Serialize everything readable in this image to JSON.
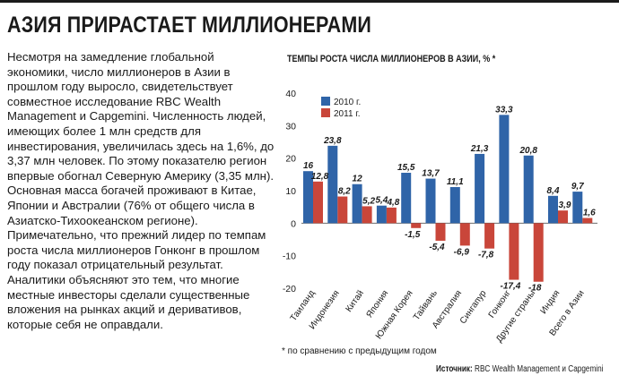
{
  "headline": "АЗИЯ ПРИРАСТАЕТ МИЛЛИОНЕРАМИ",
  "article": "Несмотря на замедление глобальной экономики, число миллионеров в Азии в прошлом году выросло, свидетельствует совместное исследование RBC Wealth Management и Capgemini. Численность людей, имеющих более 1 млн средств для инвестирования, увеличилась здесь на 1,6%, до 3,37 млн человек. По этому показателю регион впервые обогнал Северную Америку (3,35 млн). Основная масса богачей проживают в Китае, Японии и Австралии (76% от общего числа в Азиатско-Тихоокеанском регионе). Примечательно, что прежний лидер по темпам роста числа миллионеров Гонконг в прошлом году показал отрицательный результат. Аналитики объясняют это тем, что многие местные инвесторы сделали существенные вложения на рынках акций и деривативов, которые себя не оправдали.",
  "footnote": "* по сравнению с предыдущим годом",
  "source": {
    "label": "Источник:",
    "text": "RBC Wealth Management и Capgemini"
  },
  "colors": {
    "series_2010": "#2f64a8",
    "series_2011": "#c9463a",
    "rule": "#1b1b1b"
  },
  "chart_data": {
    "type": "bar",
    "title": "ТЕМПЫ РОСТА ЧИСЛА МИЛЛИОНЕРОВ В АЗИИ, % *",
    "categories": [
      "Таиланд",
      "Индонезия",
      "Китай",
      "Япония",
      "Южная Корея",
      "Тайвань",
      "Австралия",
      "Сингапур",
      "Гонконг",
      "Другие страны",
      "Индия",
      "Всего в Азии"
    ],
    "series": [
      {
        "name": "2010 г.",
        "values": [
          16,
          23.8,
          12,
          5.4,
          15.5,
          13.7,
          11.1,
          21.3,
          33.3,
          20.8,
          8.4,
          9.7
        ],
        "labels": [
          "16",
          "23,8",
          "12",
          "5,4",
          "15,5",
          "13,7",
          "11,1",
          "21,3",
          "33,3",
          "20,8",
          "8,4",
          "9,7"
        ]
      },
      {
        "name": "2011 г.",
        "values": [
          12.8,
          8.2,
          5.2,
          4.8,
          -1.5,
          -5.4,
          -6.9,
          -7.8,
          -17.4,
          -18,
          3.9,
          1.6
        ],
        "labels": [
          "12,8",
          "8,2",
          "5,2",
          "4,8",
          "-1,5",
          "-5,4",
          "-6,9",
          "-7,8",
          "-17,4",
          "-18",
          "3,9",
          "1,6"
        ]
      }
    ],
    "ylim": [
      -20,
      40
    ],
    "yticks": [
      40,
      30,
      20,
      10,
      0,
      -10,
      -20
    ],
    "legend_position": "top-left",
    "grid": false
  }
}
